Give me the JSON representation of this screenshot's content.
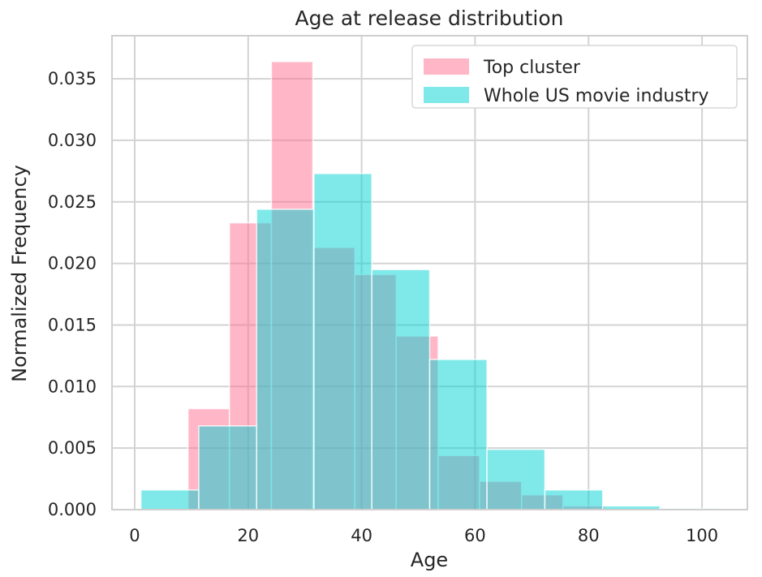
{
  "chart_data": {
    "type": "histogram",
    "title": "Age at release distribution",
    "xlabel": "Age",
    "ylabel": "Normalized Frequency",
    "xlim": [
      -4,
      108
    ],
    "ylim": [
      0,
      0.0385
    ],
    "x_ticks": [
      0,
      20,
      40,
      60,
      80,
      100
    ],
    "x_tick_labels": [
      "0",
      "20",
      "40",
      "60",
      "80",
      "100"
    ],
    "y_ticks": [
      0,
      0.005,
      0.01,
      0.015,
      0.02,
      0.025,
      0.03,
      0.035
    ],
    "y_tick_labels": [
      "0.000",
      "0.005",
      "0.010",
      "0.015",
      "0.020",
      "0.025",
      "0.030",
      "0.035"
    ],
    "grid": true,
    "legend_position": "top-right",
    "series": [
      {
        "name": "Top cluster",
        "color": "#ff6f91",
        "bins": [
          {
            "start": 9.4,
            "end": 16.7,
            "value": 0.0082
          },
          {
            "start": 16.7,
            "end": 24.1,
            "value": 0.0233
          },
          {
            "start": 24.1,
            "end": 31.4,
            "value": 0.0364
          },
          {
            "start": 31.4,
            "end": 38.8,
            "value": 0.0213
          },
          {
            "start": 38.8,
            "end": 46.1,
            "value": 0.0191
          },
          {
            "start": 46.1,
            "end": 53.5,
            "value": 0.0141
          },
          {
            "start": 53.5,
            "end": 60.8,
            "value": 0.0044
          },
          {
            "start": 60.8,
            "end": 68.2,
            "value": 0.0023
          },
          {
            "start": 68.2,
            "end": 75.5,
            "value": 0.0012
          },
          {
            "start": 75.5,
            "end": 82.9,
            "value": 0.0003
          }
        ]
      },
      {
        "name": "Whole US movie industry",
        "color": "#00d1d1",
        "bins": [
          {
            "start": 1.1,
            "end": 11.3,
            "value": 0.0016
          },
          {
            "start": 11.3,
            "end": 21.5,
            "value": 0.0068
          },
          {
            "start": 21.5,
            "end": 31.6,
            "value": 0.0244
          },
          {
            "start": 31.6,
            "end": 41.8,
            "value": 0.0273
          },
          {
            "start": 41.8,
            "end": 52.0,
            "value": 0.0195
          },
          {
            "start": 52.0,
            "end": 62.1,
            "value": 0.0122
          },
          {
            "start": 62.1,
            "end": 72.3,
            "value": 0.0049
          },
          {
            "start": 72.3,
            "end": 82.5,
            "value": 0.0016
          },
          {
            "start": 82.5,
            "end": 92.6,
            "value": 0.0003
          },
          {
            "start": 92.6,
            "end": 102.8,
            "value": 0.0001
          }
        ]
      }
    ]
  }
}
